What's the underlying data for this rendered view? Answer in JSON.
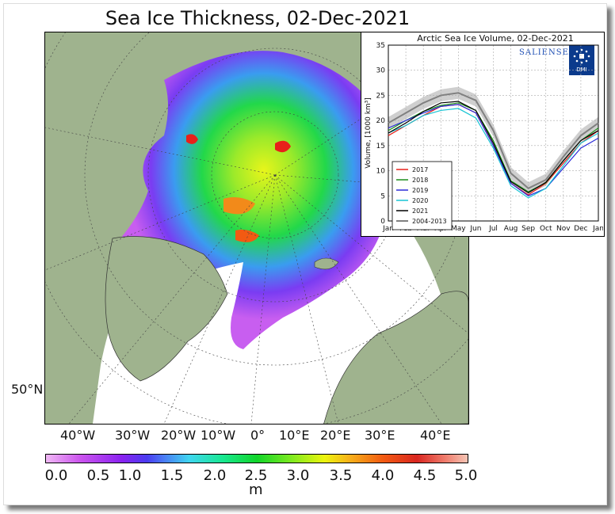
{
  "title": "Sea Ice Thickness, 02-Dec-2021",
  "map": {
    "lon_labels": [
      "40°W",
      "30°W",
      "20°W",
      "10°W",
      "0°",
      "10°E",
      "20°E",
      "30°E",
      "40°E"
    ],
    "lat_label": "50°N"
  },
  "colorbar": {
    "ticks": [
      "0.0",
      "0.5",
      "1.0",
      "1.5",
      "2.0",
      "2.5",
      "3.0",
      "3.5",
      "4.0",
      "4.5",
      "5.0"
    ],
    "unit": "m"
  },
  "logos": {
    "salienseas": "SALIENSEAS",
    "dmi": "DMI"
  },
  "colors": {
    "land": "#9fb38e",
    "ocean": "#ffffff"
  },
  "chart_data": {
    "type": "line",
    "title": "Arctic Sea Ice Volume, 02-Dec-2021",
    "ylabel": "Volume, [1000 km³]",
    "xlabel": "",
    "categories": [
      "Jan",
      "Feb",
      "Mar",
      "Apr",
      "May",
      "Jun",
      "Jul",
      "Aug",
      "Sep",
      "Oct",
      "Nov",
      "Dec",
      "Jan"
    ],
    "ylim": [
      0,
      35
    ],
    "yticks": [
      0,
      5,
      10,
      15,
      20,
      25,
      30,
      35
    ],
    "grid": true,
    "legend_position": "bottom-left",
    "series": [
      {
        "name": "2017",
        "color": "#e8201a",
        "values": [
          17.0,
          19.0,
          21.0,
          22.8,
          23.2,
          21.5,
          15.0,
          7.5,
          5.2,
          7.5,
          11.5,
          15.5,
          18.0
        ]
      },
      {
        "name": "2018",
        "color": "#1a8c1a",
        "values": [
          18.0,
          20.0,
          21.8,
          23.0,
          23.5,
          22.0,
          16.0,
          8.0,
          5.8,
          7.6,
          12.0,
          16.0,
          18.5
        ]
      },
      {
        "name": "2019",
        "color": "#2b2bd8",
        "values": [
          18.5,
          20.0,
          21.5,
          22.8,
          23.2,
          21.5,
          15.0,
          7.5,
          5.0,
          6.5,
          10.5,
          14.5,
          16.5
        ]
      },
      {
        "name": "2020",
        "color": "#17c4d4",
        "values": [
          17.5,
          19.0,
          21.0,
          22.0,
          22.4,
          20.5,
          14.5,
          7.0,
          4.6,
          6.5,
          11.0,
          15.5,
          17.5
        ]
      },
      {
        "name": "2021",
        "color": "#000000",
        "values": [
          17.5,
          19.5,
          21.8,
          23.5,
          23.8,
          22.0,
          15.5,
          7.8,
          5.6,
          7.7,
          12.0,
          16.0,
          18.0
        ]
      },
      {
        "name": "2004-2013",
        "color": "#808080",
        "values": [
          19.5,
          21.5,
          23.5,
          25.0,
          25.5,
          24.0,
          18.0,
          9.5,
          6.5,
          8.2,
          12.8,
          17.0,
          19.5
        ]
      }
    ]
  }
}
